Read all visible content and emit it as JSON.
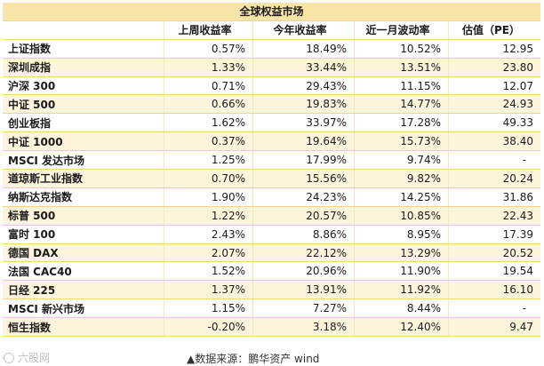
{
  "table": {
    "title": "全球权益市场",
    "headers": [
      "",
      "上周收益率",
      "今年收益率",
      "近一月波动率",
      "估值（PE）"
    ],
    "rows": [
      [
        "上证指数",
        "0.57%",
        "18.49%",
        "10.52%",
        "12.95"
      ],
      [
        "深圳成指",
        "1.33%",
        "33.44%",
        "13.51%",
        "23.80"
      ],
      [
        "沪深 300",
        "0.71%",
        "29.43%",
        "11.15%",
        "12.07"
      ],
      [
        "中证 500",
        "0.66%",
        "19.83%",
        "14.77%",
        "24.93"
      ],
      [
        "创业板指",
        "1.62%",
        "33.97%",
        "17.28%",
        "49.33"
      ],
      [
        "中证 1000",
        "0.37%",
        "19.64%",
        "15.73%",
        "38.40"
      ],
      [
        "MSCI 发达市场",
        "1.25%",
        "17.99%",
        "9.74%",
        "-"
      ],
      [
        "道琼斯工业指数",
        "0.70%",
        "15.56%",
        "9.82%",
        "20.24"
      ],
      [
        "纳斯达克指数",
        "1.90%",
        "24.23%",
        "14.25%",
        "31.86"
      ],
      [
        "标普 500",
        "1.22%",
        "20.57%",
        "10.85%",
        "22.43"
      ],
      [
        "富时 100",
        "2.43%",
        "8.86%",
        "8.95%",
        "17.39"
      ],
      [
        "德国 DAX",
        "2.07%",
        "22.12%",
        "13.29%",
        "20.52"
      ],
      [
        "法国 CAC40",
        "1.52%",
        "20.96%",
        "11.90%",
        "19.54"
      ],
      [
        "日经 225",
        "1.37%",
        "13.91%",
        "11.92%",
        "16.10"
      ],
      [
        "MSCI 新兴市场",
        "1.15%",
        "7.27%",
        "8.44%",
        "-"
      ],
      [
        "恒生指数",
        "-0.20%",
        "3.18%",
        "12.40%",
        "9.47"
      ]
    ]
  },
  "footer": {
    "source": "▲数据来源：鹏华资产 wind",
    "watermark": "六股网"
  },
  "colors": {
    "title_bg": "#f8e4a6",
    "stripe_bg": "#fdf4dc",
    "grid_line": "#f1d58a"
  }
}
